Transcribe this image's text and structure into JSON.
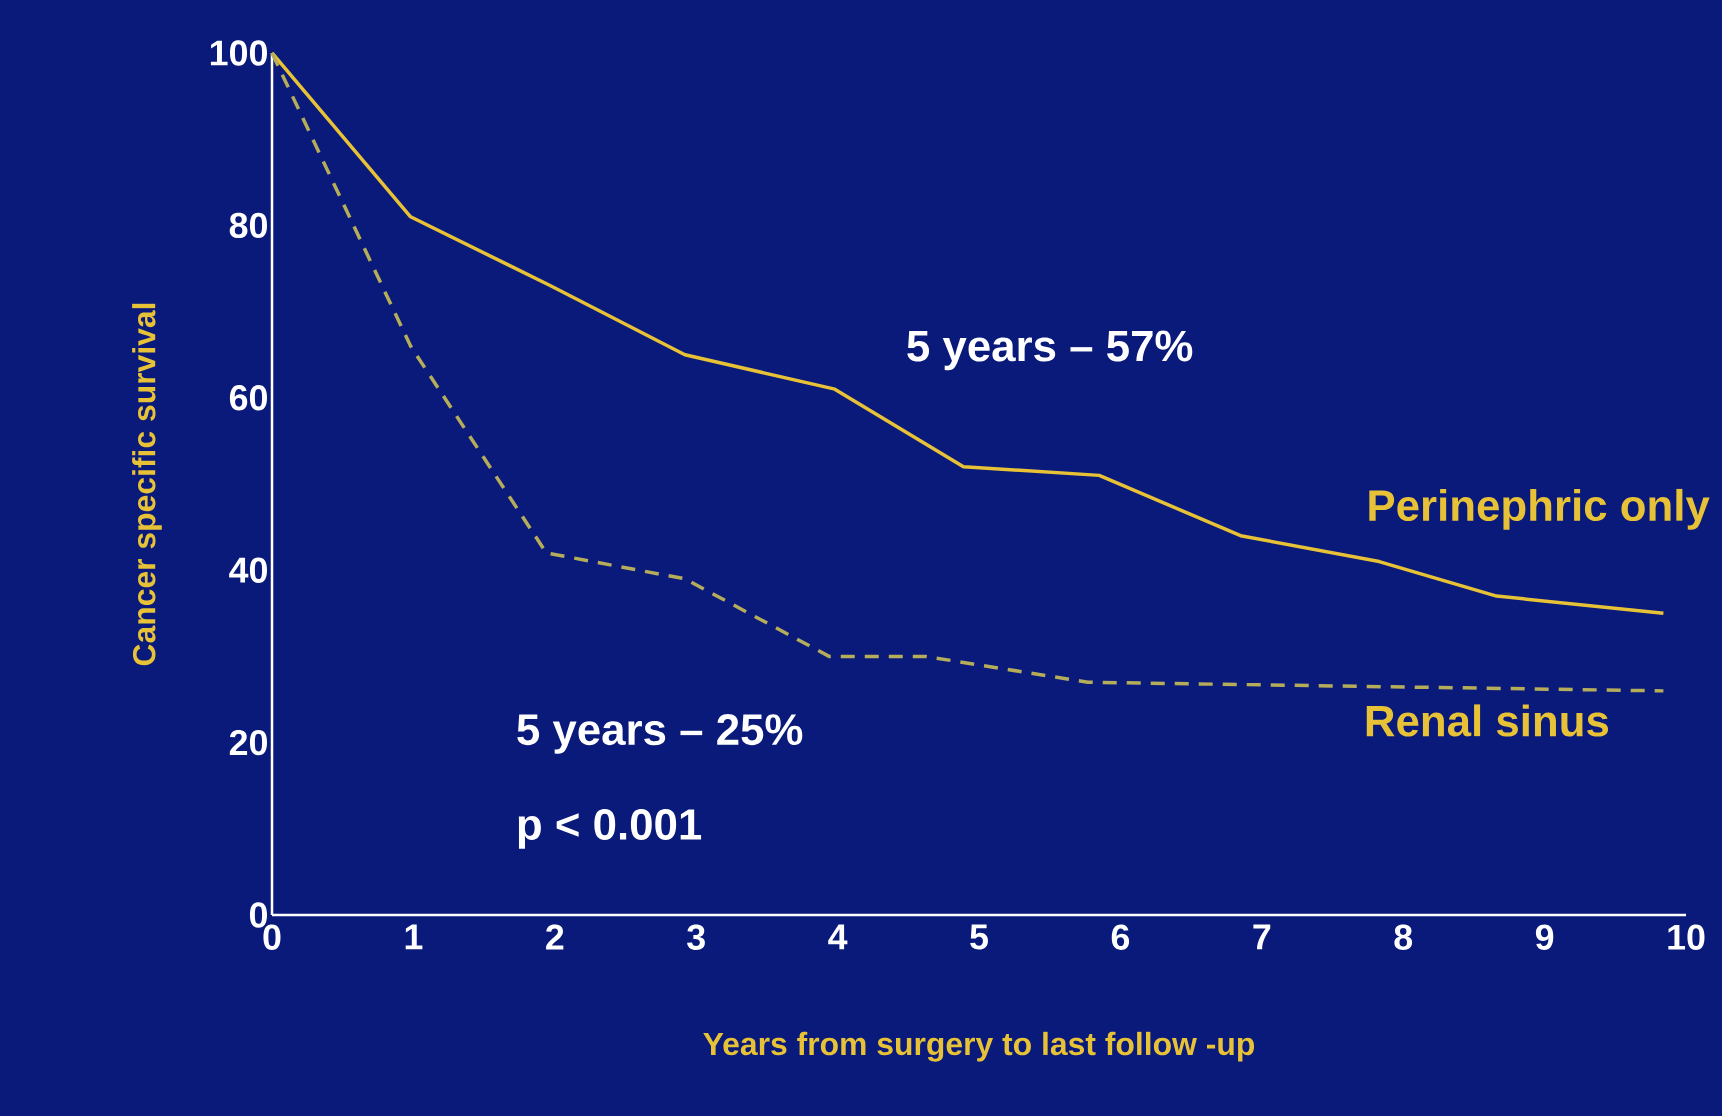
{
  "chart_data": {
    "type": "line",
    "xlabel": "Years from surgery to last follow -up",
    "ylabel": "Cancer specific survival",
    "xlim": [
      0,
      10
    ],
    "ylim": [
      0,
      100
    ],
    "xticks": [
      0,
      1,
      2,
      3,
      4,
      5,
      6,
      7,
      8,
      9,
      10
    ],
    "yticks": [
      0,
      20,
      40,
      60,
      80,
      100
    ],
    "grid": false,
    "legend": false,
    "series": [
      {
        "name": "Perinephric only",
        "color": "#e8c236",
        "line_style": "solid",
        "x": [
          0,
          0.98,
          1.97,
          2.92,
          3.98,
          4.89,
          5.85,
          6.85,
          7.83,
          8.66,
          9.84
        ],
        "values": [
          100,
          81,
          73,
          65,
          61,
          52,
          51,
          44,
          41,
          37,
          35
        ]
      },
      {
        "name": "Renal sinus",
        "color": "#b5ad5a",
        "line_style": "dashed",
        "x": [
          0,
          0.98,
          1.94,
          2.92,
          3.94,
          4.62,
          5.77,
          9.84
        ],
        "values": [
          100,
          66,
          42,
          39,
          30,
          30,
          27,
          26
        ]
      }
    ],
    "annotations": [
      "5 years – 57%",
      "5 years – 25%",
      "p < 0.001"
    ]
  }
}
